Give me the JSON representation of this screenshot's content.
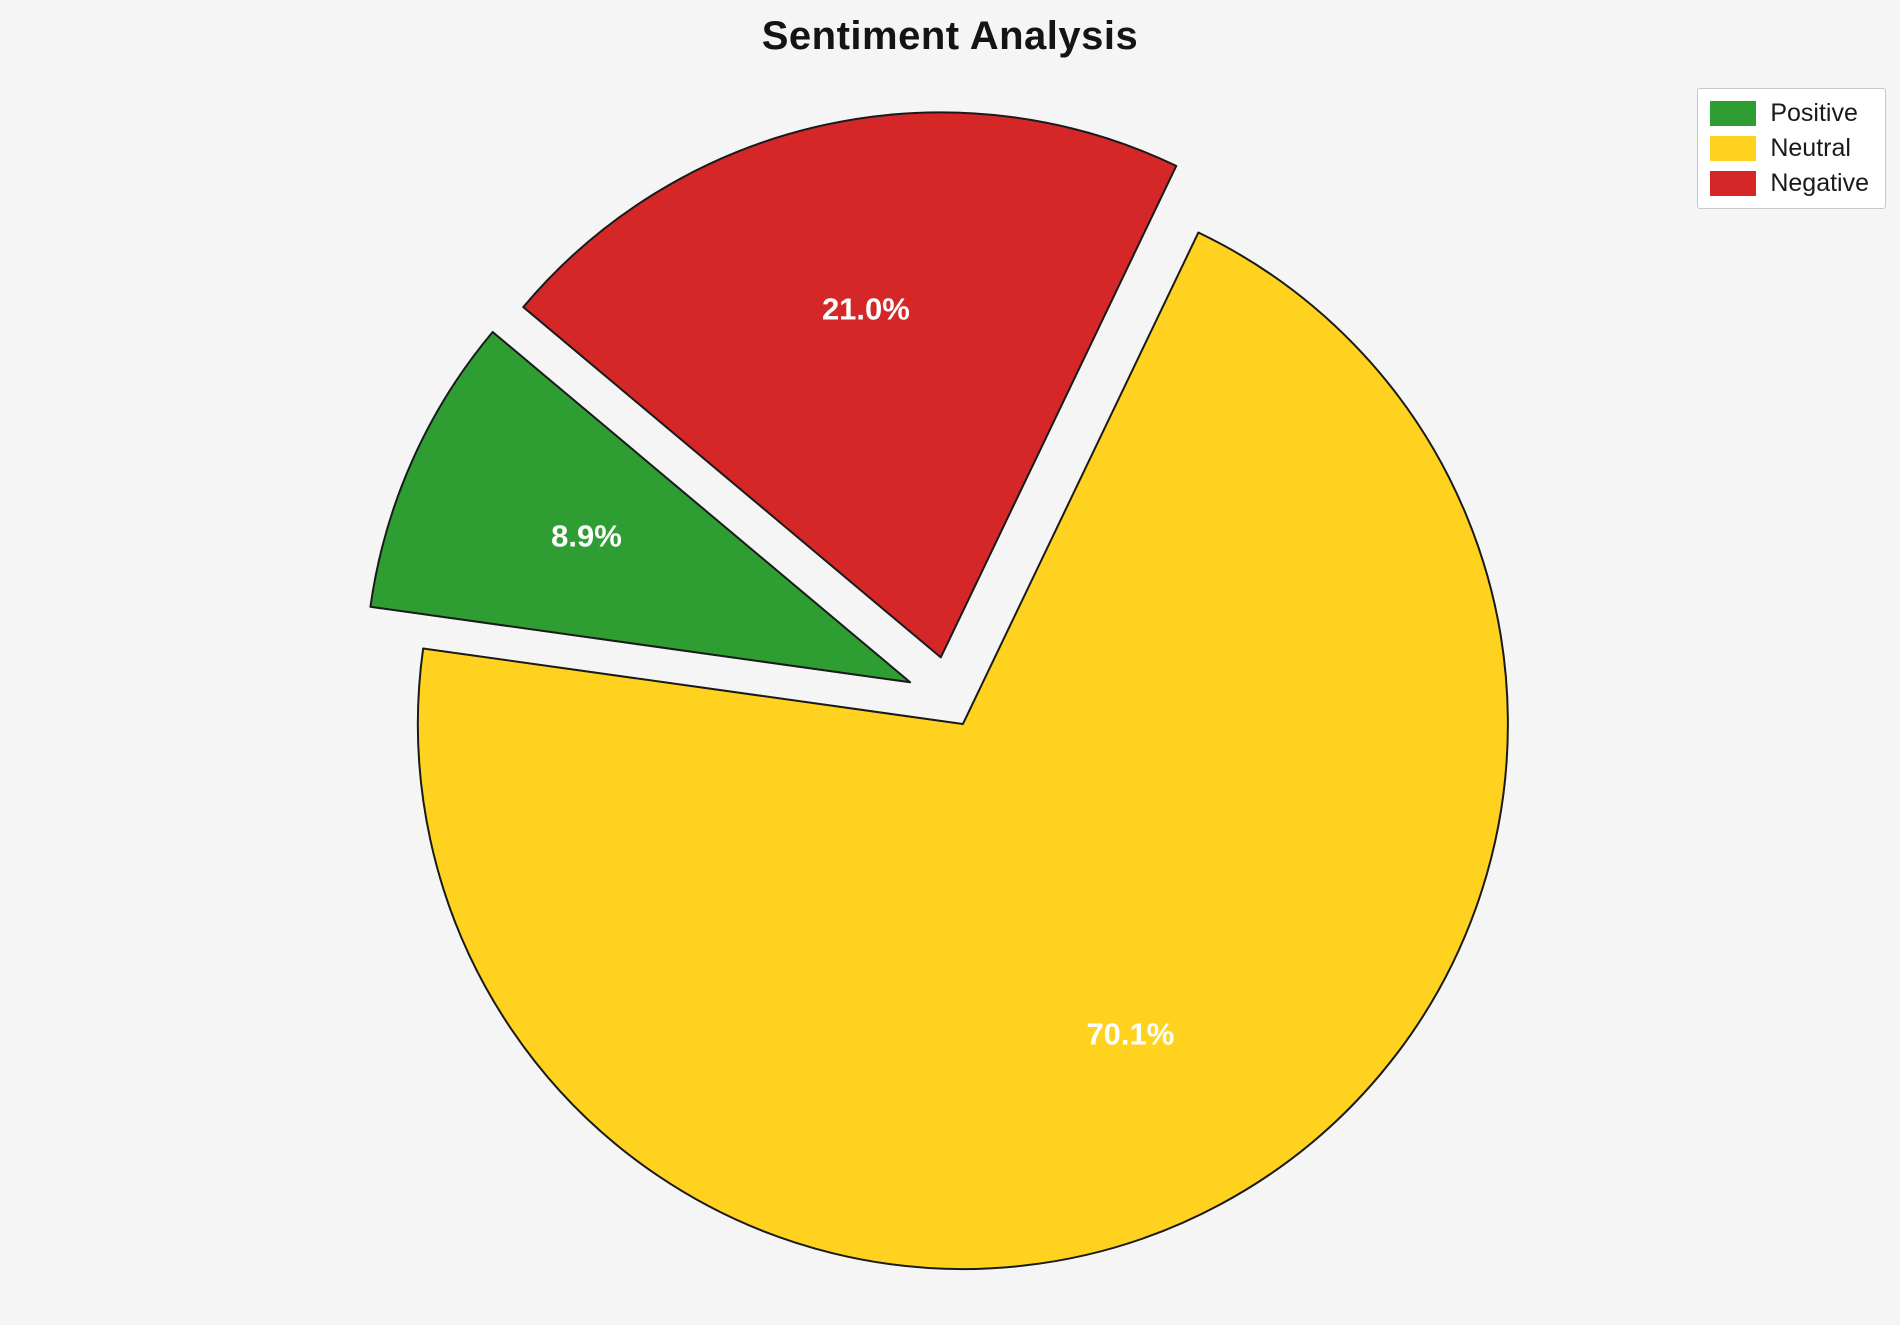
{
  "chart_data": {
    "type": "pie",
    "title": "Sentiment Analysis",
    "labels": [
      "Positive",
      "Neutral",
      "Negative"
    ],
    "values": [
      8.9,
      70.1,
      21.0
    ],
    "pct_labels": [
      "8.9%",
      "70.1%",
      "21.0%"
    ],
    "colors": [
      "#2e9e33",
      "#ffd21f",
      "#d62728"
    ],
    "edge_color": "#1a1a1a",
    "background_color": "#f5f5f5",
    "start_angle": 140,
    "counterclock": true,
    "explode": [
      0.08,
      0.05,
      0.08
    ],
    "pct_distance": 0.65,
    "legend_position": "upper right",
    "legend_entries": [
      "Positive",
      "Neutral",
      "Negative"
    ]
  }
}
